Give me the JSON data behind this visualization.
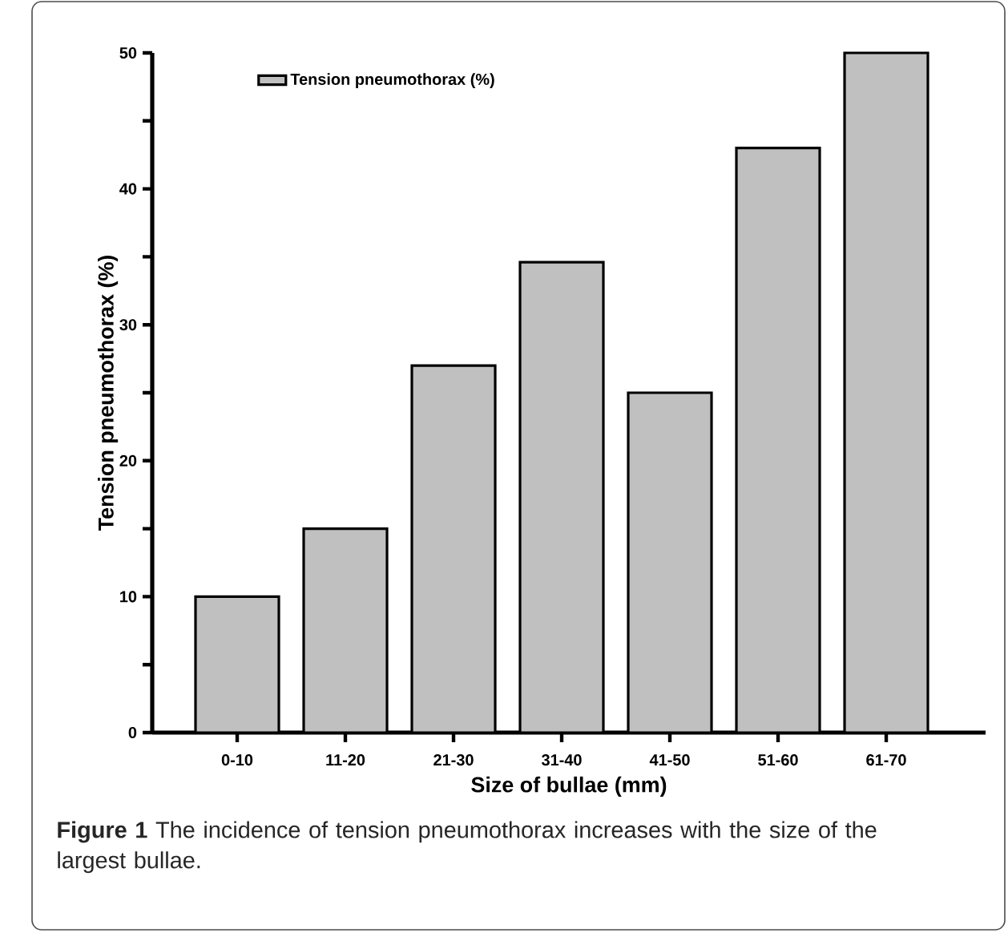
{
  "chart_data": {
    "type": "bar",
    "categories": [
      "0-10",
      "11-20",
      "21-30",
      "31-40",
      "41-50",
      "51-60",
      "61-70"
    ],
    "series": [
      {
        "name": "Tension pneumothorax (%)",
        "color": "#c0c0c0",
        "values": [
          10,
          15,
          27,
          34.6,
          25,
          43,
          50
        ]
      }
    ],
    "xlabel": "Size of bullae (mm)",
    "ylabel": "Tension pneumothorax (%)",
    "ylim": [
      0,
      50
    ],
    "yticks": [
      0,
      {
        "value": 5,
        "label": null
      },
      10,
      {
        "value": 15,
        "label": null
      },
      20,
      {
        "value": 25,
        "label": null
      },
      30,
      {
        "value": 35,
        "label": null
      },
      40,
      {
        "value": 45,
        "label": null
      },
      50
    ],
    "legend": "top left",
    "annotations": [
      "**Figure 1** The incidence of tension pneumothorax increases with the size of the largest bullae."
    ]
  }
}
